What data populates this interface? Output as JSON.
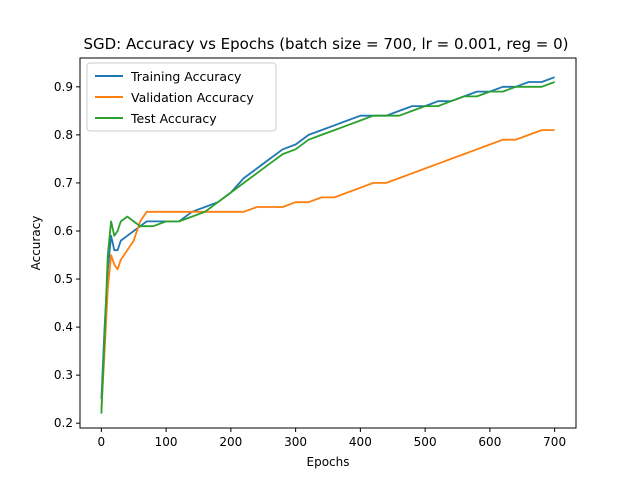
{
  "chart_data": {
    "type": "line",
    "title": "SGD: Accuracy vs Epochs (batch size = 700, lr = 0.001, reg = 0)",
    "xlabel": "Epochs",
    "ylabel": "Accuracy",
    "xlim": [
      -33,
      733
    ],
    "ylim": [
      0.19,
      0.96
    ],
    "xticks": [
      0,
      100,
      200,
      300,
      400,
      500,
      600,
      700
    ],
    "yticks": [
      0.2,
      0.3,
      0.4,
      0.5,
      0.6,
      0.7,
      0.8,
      0.9
    ],
    "legend": {
      "placement": "top-left"
    },
    "grid": false,
    "series": [
      {
        "name": "Training Accuracy",
        "color": "#1f77b4",
        "x": [
          0,
          5,
          10,
          15,
          20,
          25,
          30,
          40,
          50,
          60,
          70,
          80,
          100,
          120,
          140,
          160,
          180,
          200,
          220,
          240,
          260,
          280,
          300,
          320,
          340,
          360,
          380,
          400,
          420,
          440,
          460,
          480,
          500,
          520,
          540,
          560,
          580,
          600,
          620,
          640,
          660,
          680,
          700
        ],
        "y": [
          0.25,
          0.4,
          0.52,
          0.59,
          0.56,
          0.56,
          0.58,
          0.59,
          0.6,
          0.61,
          0.62,
          0.62,
          0.62,
          0.62,
          0.64,
          0.65,
          0.66,
          0.68,
          0.71,
          0.73,
          0.75,
          0.77,
          0.78,
          0.8,
          0.81,
          0.82,
          0.83,
          0.84,
          0.84,
          0.84,
          0.85,
          0.86,
          0.86,
          0.87,
          0.87,
          0.88,
          0.89,
          0.89,
          0.9,
          0.9,
          0.91,
          0.91,
          0.92
        ]
      },
      {
        "name": "Validation Accuracy",
        "color": "#ff7f0e",
        "x": [
          0,
          5,
          10,
          15,
          20,
          25,
          30,
          40,
          50,
          60,
          70,
          80,
          100,
          120,
          140,
          160,
          180,
          200,
          220,
          240,
          260,
          280,
          300,
          320,
          340,
          360,
          380,
          400,
          420,
          440,
          460,
          480,
          500,
          520,
          540,
          560,
          580,
          600,
          620,
          640,
          660,
          680,
          700
        ],
        "y": [
          0.23,
          0.35,
          0.48,
          0.55,
          0.53,
          0.52,
          0.54,
          0.56,
          0.58,
          0.62,
          0.64,
          0.64,
          0.64,
          0.64,
          0.64,
          0.64,
          0.64,
          0.64,
          0.64,
          0.65,
          0.65,
          0.65,
          0.66,
          0.66,
          0.67,
          0.67,
          0.68,
          0.69,
          0.7,
          0.7,
          0.71,
          0.72,
          0.73,
          0.74,
          0.75,
          0.76,
          0.77,
          0.78,
          0.79,
          0.79,
          0.8,
          0.81,
          0.81
        ]
      },
      {
        "name": "Test Accuracy",
        "color": "#2ca02c",
        "x": [
          0,
          5,
          10,
          15,
          20,
          25,
          30,
          40,
          50,
          60,
          70,
          80,
          100,
          120,
          140,
          160,
          180,
          200,
          220,
          240,
          260,
          280,
          300,
          320,
          340,
          360,
          380,
          400,
          420,
          440,
          460,
          480,
          500,
          520,
          540,
          560,
          580,
          600,
          620,
          640,
          660,
          680,
          700
        ],
        "y": [
          0.22,
          0.38,
          0.55,
          0.62,
          0.59,
          0.6,
          0.62,
          0.63,
          0.62,
          0.61,
          0.61,
          0.61,
          0.62,
          0.62,
          0.63,
          0.64,
          0.66,
          0.68,
          0.7,
          0.72,
          0.74,
          0.76,
          0.77,
          0.79,
          0.8,
          0.81,
          0.82,
          0.83,
          0.84,
          0.84,
          0.84,
          0.85,
          0.86,
          0.86,
          0.87,
          0.88,
          0.88,
          0.89,
          0.89,
          0.9,
          0.9,
          0.9,
          0.91
        ]
      }
    ]
  }
}
